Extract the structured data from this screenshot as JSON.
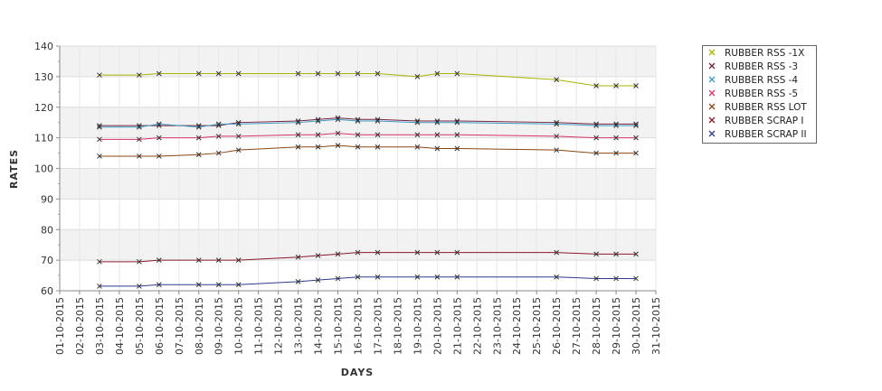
{
  "chart_data": {
    "type": "line",
    "title": "",
    "xlabel": "DAYS",
    "ylabel": "RATES",
    "ylim": [
      60,
      140
    ],
    "yticks": [
      60,
      70,
      80,
      90,
      100,
      110,
      120,
      130,
      140
    ],
    "x_tick_labels": [
      "01-10-2015",
      "02-10-2015",
      "03-10-2015",
      "04-10-2015",
      "05-10-2015",
      "06-10-2015",
      "07-10-2015",
      "08-10-2015",
      "09-10-2015",
      "10-10-2015",
      "11-10-2015",
      "12-10-2015",
      "13-10-2015",
      "14-10-2015",
      "15-10-2015",
      "16-10-2015",
      "17-10-2015",
      "18-10-2015",
      "19-10-2015",
      "20-10-2015",
      "21-10-2015",
      "22-10-2015",
      "23-10-2015",
      "24-10-2015",
      "25-10-2015",
      "26-10-2015",
      "27-10-2015",
      "28-10-2015",
      "29-10-2015",
      "30-10-2015",
      "31-10-2015"
    ],
    "x": [
      "03-10-2015",
      "05-10-2015",
      "06-10-2015",
      "08-10-2015",
      "09-10-2015",
      "10-10-2015",
      "13-10-2015",
      "14-10-2015",
      "15-10-2015",
      "16-10-2015",
      "17-10-2015",
      "19-10-2015",
      "20-10-2015",
      "21-10-2015",
      "26-10-2015",
      "28-10-2015",
      "29-10-2015",
      "30-10-2015"
    ],
    "grid": true,
    "legend_position": "right",
    "series": [
      {
        "name": "RUBBER RSS -1X",
        "color": "#a8b400",
        "values": [
          130.5,
          130.5,
          131,
          131,
          131,
          131,
          131,
          131,
          131,
          131,
          131,
          130,
          131,
          131,
          129,
          127,
          127,
          127
        ]
      },
      {
        "name": "RUBBER RSS -3",
        "color": "#7a1f3d",
        "values": [
          114,
          114,
          114,
          114,
          114,
          115,
          115.5,
          116,
          116.5,
          116,
          116,
          115.5,
          115.5,
          115.5,
          115,
          114.5,
          114.5,
          114.5
        ]
      },
      {
        "name": "RUBBER RSS -4",
        "color": "#3a9cc4",
        "values": [
          113.5,
          113.5,
          114.5,
          113.5,
          114.5,
          114.5,
          115,
          115.5,
          116,
          115.5,
          115.5,
          115,
          115,
          115,
          114.5,
          114,
          114,
          114
        ]
      },
      {
        "name": "RUBBER RSS -5",
        "color": "#d6336c",
        "values": [
          109.5,
          109.5,
          110,
          110,
          110.5,
          110.5,
          111,
          111,
          111.5,
          111,
          111,
          111,
          111,
          111,
          110.5,
          110,
          110,
          110
        ]
      },
      {
        "name": "RUBBER RSS LOT",
        "color": "#8b4513",
        "values": [
          104,
          104,
          104,
          104.5,
          105,
          106,
          107,
          107,
          107.5,
          107,
          107,
          107,
          106.5,
          106.5,
          106,
          105,
          105,
          105
        ]
      },
      {
        "name": "RUBBER SCRAP I",
        "color": "#8b1a2b",
        "values": [
          69.5,
          69.5,
          70,
          70,
          70,
          70,
          71,
          71.5,
          72,
          72.5,
          72.5,
          72.5,
          72.5,
          72.5,
          72.5,
          72,
          72,
          72
        ]
      },
      {
        "name": "RUBBER SCRAP II",
        "color": "#2e3b8c",
        "values": [
          61.5,
          61.5,
          62,
          62,
          62,
          62,
          63,
          63.5,
          64,
          64.5,
          64.5,
          64.5,
          64.5,
          64.5,
          64.5,
          64,
          64,
          64
        ]
      }
    ]
  }
}
